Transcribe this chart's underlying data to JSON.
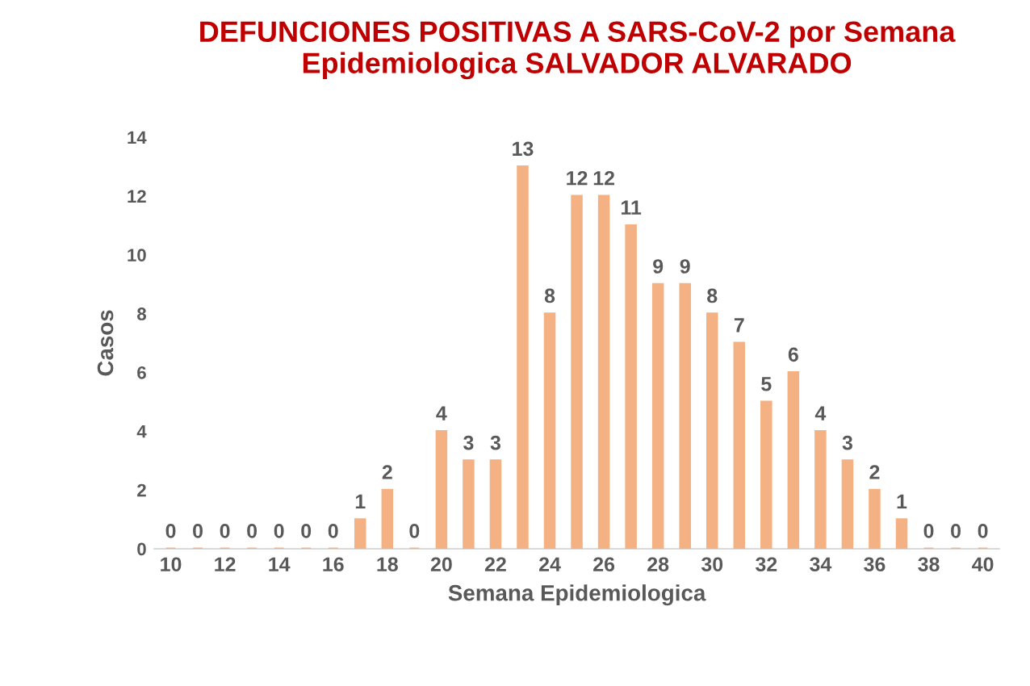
{
  "chart_data": {
    "type": "bar",
    "title": "DEFUNCIONES POSITIVAS A SARS-CoV-2 por Semana Epidemiologica SALVADOR ALVARADO",
    "xlabel": "Semana Epidemiologica",
    "ylabel": "Casos",
    "categories": [
      "10",
      null,
      "12",
      null,
      "14",
      null,
      "16",
      null,
      "18",
      null,
      "20",
      null,
      "22",
      null,
      "24",
      null,
      "26",
      null,
      "28",
      null,
      "30",
      null,
      "32",
      null,
      "34",
      null,
      "36",
      null,
      "38",
      null,
      "40"
    ],
    "values": [
      0,
      0,
      0,
      0,
      0,
      0,
      0,
      1,
      2,
      0,
      4,
      3,
      3,
      13,
      8,
      12,
      12,
      11,
      9,
      9,
      8,
      7,
      5,
      6,
      4,
      3,
      2,
      1,
      0,
      0,
      0
    ],
    "color": "#f4b183",
    "ylim": [
      0,
      14
    ],
    "yticks": [
      0,
      2,
      4,
      6,
      8,
      10,
      12,
      14
    ],
    "data_labels": true,
    "grid": false,
    "legend": false
  }
}
